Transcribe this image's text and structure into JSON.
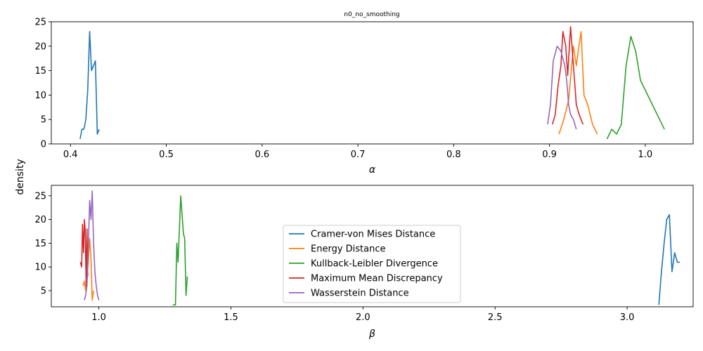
{
  "figure": {
    "title": "n0_no_smoothing",
    "shared_ylabel": "density"
  },
  "chart_data": [
    {
      "type": "line",
      "xlabel": "α",
      "ylabel": "density",
      "xlim": [
        0.38,
        1.05
      ],
      "ylim": [
        0,
        25
      ],
      "xticks": [
        0.4,
        0.5,
        0.6,
        0.7,
        0.8,
        0.9,
        1.0
      ],
      "xtick_labels": [
        "0.4",
        "0.5",
        "0.6",
        "0.7",
        "0.8",
        "0.9",
        "1.0"
      ],
      "yticks": [
        0,
        5,
        10,
        15,
        20,
        25
      ],
      "ytick_labels": [
        "0",
        "5",
        "10",
        "15",
        "20",
        "25"
      ],
      "grid": false,
      "series": [
        {
          "name": "Cramer-von Mises Distance",
          "color": "#1f77b4",
          "x": [
            0.41,
            0.412,
            0.414,
            0.416,
            0.418,
            0.42,
            0.422,
            0.424,
            0.426,
            0.428,
            0.43
          ],
          "y": [
            1,
            3,
            3,
            5,
            11,
            23,
            15,
            16,
            17,
            2,
            3
          ]
        },
        {
          "name": "Energy Distance",
          "color": "#ff7f0e",
          "x": [
            0.91,
            0.915,
            0.92,
            0.925,
            0.928,
            0.93,
            0.933,
            0.936,
            0.94,
            0.945,
            0.95
          ],
          "y": [
            2,
            5,
            9,
            20,
            16,
            19,
            23,
            10,
            8,
            4,
            2
          ]
        },
        {
          "name": "Kullback-Leibler Divergence",
          "color": "#2ca02c",
          "x": [
            0.96,
            0.965,
            0.97,
            0.975,
            0.98,
            0.985,
            0.99,
            0.995,
            1.0,
            1.005,
            1.01,
            1.015,
            1.02
          ],
          "y": [
            1,
            3,
            2,
            4,
            16,
            22,
            19,
            13,
            11,
            9,
            7,
            5,
            3
          ]
        },
        {
          "name": "Maximum Mean Discrepancy",
          "color": "#d62728",
          "x": [
            0.903,
            0.906,
            0.909,
            0.912,
            0.914,
            0.917,
            0.919,
            0.922,
            0.925,
            0.928,
            0.931,
            0.935
          ],
          "y": [
            4,
            6,
            12,
            16,
            23,
            20,
            14,
            24,
            16,
            8,
            6,
            4
          ]
        },
        {
          "name": "Wasserstein Distance",
          "color": "#9467bd",
          "x": [
            0.898,
            0.901,
            0.904,
            0.908,
            0.912,
            0.916,
            0.918,
            0.92,
            0.922,
            0.925,
            0.928
          ],
          "y": [
            4,
            8,
            17,
            20,
            19,
            16,
            13,
            8,
            6,
            5,
            3
          ]
        }
      ]
    },
    {
      "type": "line",
      "xlabel": "β",
      "ylabel": "density",
      "xlim": [
        0.82,
        3.25
      ],
      "ylim": [
        1.6,
        27.2
      ],
      "xticks": [
        1.0,
        1.5,
        2.0,
        2.5,
        3.0
      ],
      "xtick_labels": [
        "1.0",
        "1.5",
        "2.0",
        "2.5",
        "3.0"
      ],
      "yticks": [
        5,
        10,
        15,
        20,
        25
      ],
      "ytick_labels": [
        "5",
        "10",
        "15",
        "20",
        "25"
      ],
      "grid": false,
      "legend": {
        "placement": "center",
        "entries": [
          "Cramer-von Mises Distance",
          "Energy Distance",
          "Kullback-Leibler Divergence",
          "Maximum Mean Discrepancy",
          "Wasserstein Distance"
        ]
      },
      "series": [
        {
          "name": "Cramer-von Mises Distance",
          "color": "#1f77b4",
          "x": [
            3.12,
            3.13,
            3.14,
            3.15,
            3.16,
            3.17,
            3.18,
            3.19,
            3.2
          ],
          "y": [
            2,
            9,
            15,
            20,
            21,
            9,
            13,
            11,
            11
          ]
        },
        {
          "name": "Energy Distance",
          "color": "#ff7f0e",
          "x": [
            0.94,
            0.945,
            0.95,
            0.955,
            0.96,
            0.965,
            0.97,
            0.975,
            0.98
          ],
          "y": [
            6,
            7,
            5,
            8,
            11,
            16,
            12,
            3,
            5
          ]
        },
        {
          "name": "Kullback-Leibler Divergence",
          "color": "#2ca02c",
          "x": [
            1.28,
            1.29,
            1.295,
            1.3,
            1.31,
            1.32,
            1.325,
            1.33,
            1.335
          ],
          "y": [
            2,
            2,
            15,
            11,
            25,
            17,
            16,
            4,
            8
          ]
        },
        {
          "name": "Maximum Mean Discrepancy",
          "color": "#d62728",
          "x": [
            0.93,
            0.935,
            0.938,
            0.942,
            0.945,
            0.948,
            0.952,
            0.955,
            0.958
          ],
          "y": [
            11,
            10,
            19,
            13,
            20,
            18,
            6,
            18,
            8
          ]
        },
        {
          "name": "Wasserstein Distance",
          "color": "#9467bd",
          "x": [
            0.945,
            0.95,
            0.955,
            0.96,
            0.965,
            0.97,
            0.975,
            0.98,
            0.985,
            0.99,
            0.995,
            1.0
          ],
          "y": [
            3,
            4,
            6,
            14,
            24,
            20,
            26,
            15,
            9,
            6,
            4,
            3
          ]
        }
      ]
    }
  ]
}
